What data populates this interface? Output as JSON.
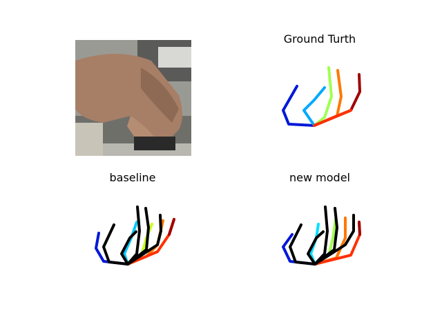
{
  "panels": {
    "input_image": {
      "title": ""
    },
    "ground_truth": {
      "title": "Ground Turth"
    },
    "baseline": {
      "title": "baseline"
    },
    "new_model": {
      "title": "new model"
    }
  },
  "finger_colors": {
    "thumb": "#0018d8",
    "index": "#00a8ff",
    "middle": "#a0ff50",
    "ring": "#ff7800",
    "pinky": "#a00000",
    "palm_edge": "#ff3000",
    "prediction": "#000000"
  }
}
